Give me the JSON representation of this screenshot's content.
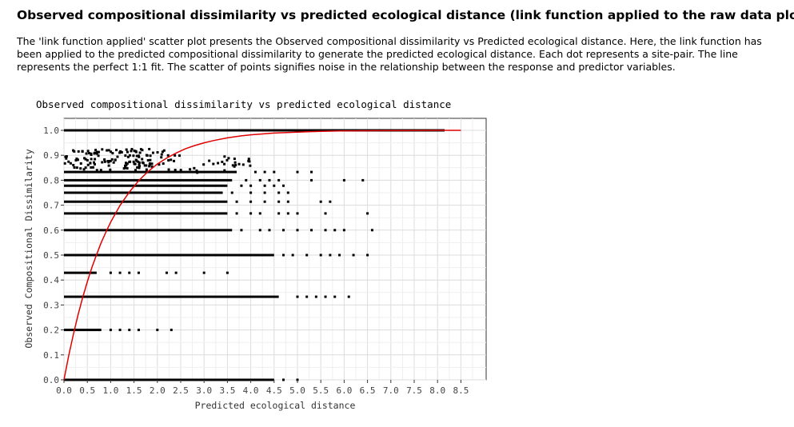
{
  "page": {
    "heading": "Observed compositional dissimilarity vs predicted ecological distance (link function applied to the raw data plot):",
    "description": "The 'link function applied' scatter plot presents the Observed compositional dissimilarity vs Predicted ecological distance. Here, the link function has been applied to the predicted compositional dissimilarity to generate the predicted ecological distance. Each dot represents a site-pair. The line represents the perfect 1:1 fit. The scatter of points signifies noise in the relationship between the response and predictor variables."
  },
  "chart_data": {
    "type": "scatter",
    "title": "Observed compositional dissimilarity vs predicted ecological distance",
    "xlabel": "Predicted ecological distance",
    "ylabel": "Observed Compositional Dissimilarity",
    "xlim": [
      0,
      9.0
    ],
    "ylim": [
      0,
      1.0
    ],
    "x_ticks": [
      0.0,
      0.5,
      1.0,
      1.5,
      2.0,
      2.5,
      3.0,
      3.5,
      4.0,
      4.5,
      5.0,
      5.5,
      6.0,
      6.5,
      7.0,
      7.5,
      8.0,
      8.5
    ],
    "x_tick_labels": [
      "0.0",
      "0.5",
      "1.0",
      "1.5",
      "2.0",
      "2.5",
      "3.0",
      "3.5",
      "4.0",
      "4.5",
      "5.0",
      "5.5",
      "6.0",
      "6.5",
      "7.0",
      "7.5",
      "8.0",
      "8.5"
    ],
    "y_ticks": [
      0.0,
      0.1,
      0.2,
      0.3,
      0.4,
      0.5,
      0.6,
      0.7,
      0.8,
      0.9,
      1.0
    ],
    "y_tick_labels": [
      "0.0",
      "0.1",
      "0.2",
      "0.3",
      "0.4",
      "0.5",
      "0.6",
      "0.7",
      "0.8",
      "0.9",
      "1.0"
    ],
    "grid": true,
    "point_color": "#000000",
    "line_color": "#e00000",
    "point_bands": [
      {
        "y": 1.0,
        "x_dense": [
          0.0,
          8.15
        ],
        "scatter": []
      },
      {
        "y": 0.833,
        "x_dense": [
          0.0,
          3.7
        ],
        "scatter": [
          4.1,
          4.3,
          4.5,
          5.0,
          5.3
        ]
      },
      {
        "y": 0.8,
        "x_dense": [
          0.0,
          3.6
        ],
        "scatter": [
          3.9,
          4.2,
          4.4,
          4.6,
          5.3,
          6.0,
          6.4
        ]
      },
      {
        "y": 0.778,
        "x_dense": [
          0.0,
          3.5
        ],
        "scatter": [
          3.8,
          4.0,
          4.3,
          4.5,
          4.7
        ]
      },
      {
        "y": 0.75,
        "x_dense": [
          0.0,
          3.4
        ],
        "scatter": [
          3.6,
          4.0,
          4.3,
          4.6,
          4.8
        ]
      },
      {
        "y": 0.714,
        "x_dense": [
          0.0,
          3.5
        ],
        "scatter": [
          3.7,
          4.0,
          4.3,
          4.6,
          4.8,
          5.5,
          5.7
        ]
      },
      {
        "y": 0.667,
        "x_dense": [
          0.0,
          3.5
        ],
        "scatter": [
          3.7,
          4.0,
          4.2,
          4.6,
          4.8,
          5.0,
          5.6,
          6.5
        ]
      },
      {
        "y": 0.6,
        "x_dense": [
          0.0,
          3.6
        ],
        "scatter": [
          3.8,
          4.2,
          4.4,
          4.7,
          5.0,
          5.3,
          5.6,
          5.8,
          6.0,
          6.6
        ]
      },
      {
        "y": 0.5,
        "x_dense": [
          0.0,
          4.5
        ],
        "scatter": [
          4.7,
          4.9,
          5.2,
          5.5,
          5.7,
          5.9,
          6.2,
          6.5
        ]
      },
      {
        "y": 0.429,
        "x_dense": [
          0.0,
          0.7
        ],
        "scatter": [
          1.0,
          1.2,
          1.4,
          1.6,
          2.2,
          2.4,
          3.0,
          3.5
        ]
      },
      {
        "y": 0.333,
        "x_dense": [
          0.0,
          4.6
        ],
        "scatter": [
          5.0,
          5.2,
          5.4,
          5.6,
          5.8,
          6.1
        ]
      },
      {
        "y": 0.2,
        "x_dense": [
          0.0,
          0.8
        ],
        "scatter": [
          1.0,
          1.2,
          1.4,
          1.6,
          2.0,
          2.3
        ]
      },
      {
        "y": 0.0,
        "x_dense": [
          0.0,
          4.5
        ],
        "scatter": [
          4.7,
          5.0
        ]
      }
    ],
    "fit_line": {
      "x": [
        0.0,
        0.1,
        0.2,
        0.3,
        0.4,
        0.5,
        0.6,
        0.7,
        0.8,
        0.9,
        1.0,
        1.2,
        1.4,
        1.6,
        1.8,
        2.0,
        2.2,
        2.4,
        2.6,
        2.8,
        3.0,
        3.2,
        3.5,
        3.8,
        4.0,
        4.5,
        5.0,
        5.5,
        6.0,
        7.0,
        8.0,
        8.5
      ],
      "y": [
        0.0,
        0.095,
        0.181,
        0.259,
        0.33,
        0.393,
        0.451,
        0.503,
        0.551,
        0.593,
        0.632,
        0.699,
        0.753,
        0.798,
        0.835,
        0.865,
        0.889,
        0.909,
        0.926,
        0.939,
        0.95,
        0.959,
        0.97,
        0.978,
        0.982,
        0.989,
        0.993,
        0.996,
        0.998,
        0.999,
        1.0,
        1.0
      ]
    }
  }
}
